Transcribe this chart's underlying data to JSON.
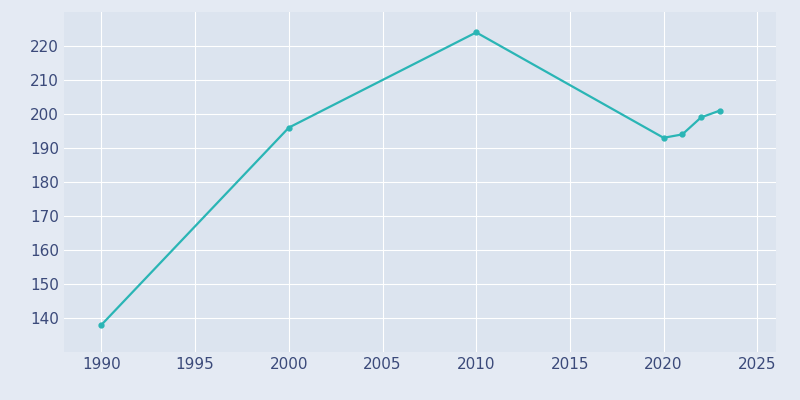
{
  "years": [
    1990,
    2000,
    2010,
    2020,
    2021,
    2022,
    2023
  ],
  "population": [
    138,
    196,
    224,
    193,
    194,
    199,
    201
  ],
  "line_color": "#2ab5b5",
  "fig_bg_color": "#e4eaf3",
  "axes_bg_color": "#dce4ef",
  "xlim": [
    1988,
    2026
  ],
  "ylim": [
    130,
    230
  ],
  "xticks": [
    1990,
    1995,
    2000,
    2005,
    2010,
    2015,
    2020,
    2025
  ],
  "yticks": [
    140,
    150,
    160,
    170,
    180,
    190,
    200,
    210,
    220
  ],
  "tick_label_color": "#3b4a7a",
  "tick_fontsize": 11,
  "grid_color": "#ffffff",
  "line_width": 1.6,
  "marker_size": 3.5
}
